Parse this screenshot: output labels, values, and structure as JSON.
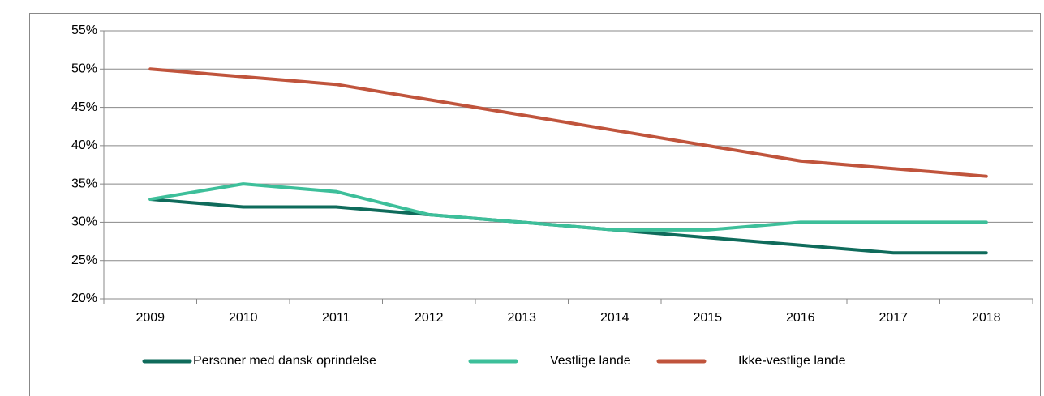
{
  "chart_data": {
    "type": "line",
    "categories": [
      "2009",
      "2010",
      "2011",
      "2012",
      "2013",
      "2014",
      "2015",
      "2016",
      "2017",
      "2018"
    ],
    "series": [
      {
        "name": "Personer med dansk oprindelse",
        "color": "#0f6b5b",
        "values": [
          33,
          32,
          32,
          31,
          30,
          29,
          28,
          27,
          26,
          26
        ]
      },
      {
        "name": "Vestlige lande",
        "color": "#3dbf9a",
        "values": [
          33,
          35,
          34,
          31,
          30,
          29,
          29,
          30,
          30,
          30
        ]
      },
      {
        "name": "Ikke-vestlige lande",
        "color": "#c0543c",
        "values": [
          50,
          49,
          48,
          46,
          44,
          42,
          40,
          38,
          37,
          36
        ]
      }
    ],
    "ylim": [
      20,
      55
    ],
    "yticks": [
      {
        "value": 20,
        "label": "20%"
      },
      {
        "value": 25,
        "label": "25%"
      },
      {
        "value": 30,
        "label": "30%"
      },
      {
        "value": 35,
        "label": "35%"
      },
      {
        "value": 40,
        "label": "40%"
      },
      {
        "value": 45,
        "label": "45%"
      },
      {
        "value": 50,
        "label": "50%"
      },
      {
        "value": 55,
        "label": "55%"
      }
    ],
    "grid": true,
    "legend": "bottom"
  }
}
